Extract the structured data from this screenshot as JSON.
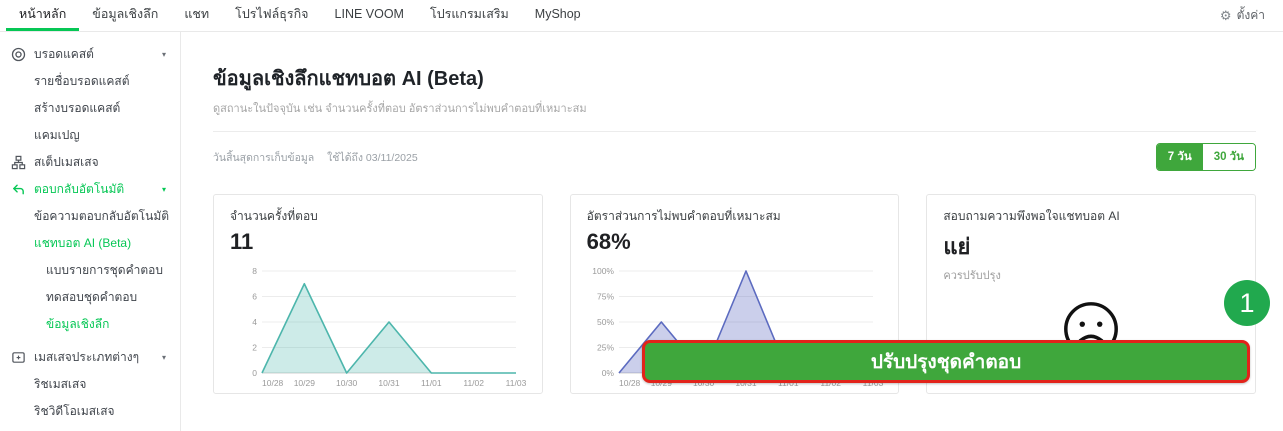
{
  "colors": {
    "accent_green": "#06c755",
    "ui_green": "#3fa73c",
    "badge_green": "#21a94e",
    "alert_red": "#e2231a"
  },
  "top_nav": {
    "items": [
      {
        "label": "หน้าหลัก",
        "active": true
      },
      {
        "label": "ข้อมูลเชิงลึก",
        "active": false
      },
      {
        "label": "แชท",
        "active": false
      },
      {
        "label": "โปรไฟล์ธุรกิจ",
        "active": false
      },
      {
        "label": "LINE VOOM",
        "active": false
      },
      {
        "label": "โปรแกรมเสริม",
        "active": false
      },
      {
        "label": "MyShop",
        "active": false
      }
    ],
    "settings_label": "ตั้งค่า"
  },
  "sidebar": {
    "items": [
      {
        "label": "บรอดแคสต์"
      },
      {
        "label": "รายชื่อบรอดแคสต์"
      },
      {
        "label": "สร้างบรอดแคสต์"
      },
      {
        "label": "แคมเปญ"
      },
      {
        "label": "สเต็ปเมสเสจ"
      },
      {
        "label": "ตอบกลับอัตโนมัติ"
      },
      {
        "label": "ข้อความตอบกลับอัตโนมัติ"
      },
      {
        "label": "แชทบอต AI (Beta)"
      },
      {
        "label": "แบบรายการชุดคำตอบ"
      },
      {
        "label": "ทดสอบชุดคำตอบ"
      },
      {
        "label": "ข้อมูลเชิงลึก",
        "active": true
      },
      {
        "label": "เมสเสจประเภทต่างๆ"
      },
      {
        "label": "ริชเมสเสจ"
      },
      {
        "label": "ริชวิดีโอเมสเสจ"
      }
    ]
  },
  "page": {
    "title": "ข้อมูลเชิงลึกแชทบอต AI (Beta)",
    "subtitle": "ดูสถานะในปัจจุบัน เช่น จำนวนครั้งที่ตอบ อัตราส่วนการไม่พบคำตอบที่เหมาะสม",
    "date_note_label": "วันสิ้นสุดการเก็บข้อมูล",
    "date_note_value": "ใช้ได้ถึง 03/11/2025",
    "range_buttons": [
      {
        "label": "7 วัน",
        "active": true
      },
      {
        "label": "30 วัน",
        "active": false
      }
    ]
  },
  "cards": [
    {
      "title": "จำนวนครั้งที่ตอบ",
      "value": "11"
    },
    {
      "title": "อัตราส่วนการไม่พบคำตอบที่เหมาะสม",
      "value": "68%"
    },
    {
      "title": "สอบถามความพึงพอใจแชทบอต AI",
      "value": "แย่",
      "subtitle": "ควรปรับปรุง",
      "icon": "sad-face-icon"
    }
  ],
  "chart_data": [
    {
      "type": "area",
      "title": "จำนวนครั้งที่ตอบ",
      "x": [
        "10/28",
        "10/29",
        "10/30",
        "10/31",
        "11/01",
        "11/02",
        "11/03"
      ],
      "values": [
        0,
        7,
        0,
        4,
        0,
        0,
        0
      ],
      "ylim": [
        0,
        8
      ],
      "yticks": [
        0,
        2,
        4,
        6,
        8
      ],
      "ytick_labels": [
        "0",
        "2",
        "4",
        "6",
        "8"
      ],
      "color": "#4db6ac",
      "fill": "rgba(77,182,172,0.28)",
      "grid": "horizontal"
    },
    {
      "type": "area",
      "title": "อัตราส่วนการไม่พบคำตอบที่เหมาะสม",
      "x": [
        "10/28",
        "10/29",
        "10/30",
        "10/31",
        "11/01",
        "11/02",
        "11/03"
      ],
      "values": [
        0,
        50,
        0,
        100,
        0,
        0,
        0
      ],
      "ylim": [
        0,
        100
      ],
      "yticks": [
        0,
        25,
        50,
        75,
        100
      ],
      "ytick_labels": [
        "0%",
        "25%",
        "50%",
        "75%",
        "100%"
      ],
      "color": "#5c6bc0",
      "fill": "rgba(92,107,192,0.32)",
      "grid": "horizontal"
    }
  ],
  "overlay": {
    "button_label": "ปรับปรุงชุดคำตอบ",
    "badge": "1"
  }
}
